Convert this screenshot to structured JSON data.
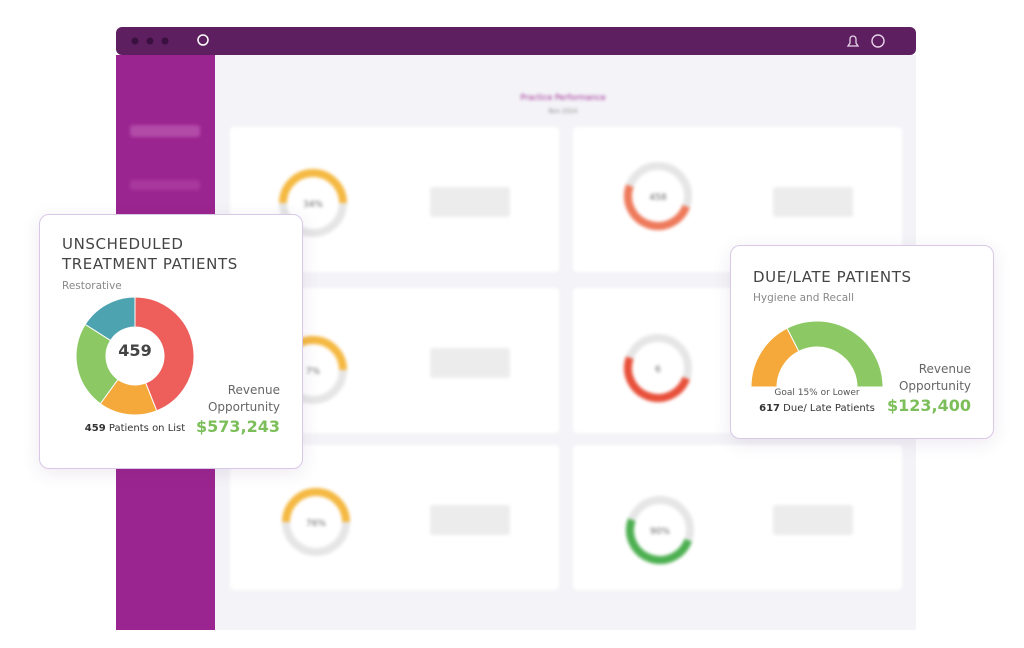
{
  "dashboard": {
    "heading": "Practice Performance",
    "period": "Nov 2024",
    "tiles": [
      {
        "value": "34%"
      },
      {
        "value": "458"
      },
      {
        "value": "7%"
      },
      {
        "value": "6"
      },
      {
        "value": "76%"
      },
      {
        "value": "90%"
      }
    ]
  },
  "card_unscheduled": {
    "title": "UNSCHEDULED TREATMENT PATIENTS",
    "subtitle": "Restorative",
    "center": "459",
    "segments": [
      {
        "value": 44,
        "color": "#ee5f5b"
      },
      {
        "value": 16,
        "color": "#f5a93b"
      },
      {
        "value": 24,
        "color": "#8cc965"
      },
      {
        "value": 16,
        "color": "#4ea3b0"
      }
    ],
    "count": "459",
    "count_text": "Patients on List",
    "revenue_label": "Revenue Opportunity",
    "revenue": "$573,243"
  },
  "card_due": {
    "title": "DUE/LATE PATIENTS",
    "subtitle": "Hygiene and Recall",
    "segments": [
      {
        "value": 35,
        "color": "#f5a93b"
      },
      {
        "value": 65,
        "color": "#8cc965"
      }
    ],
    "goal": "Goal 15% or Lower",
    "count": "617",
    "count_text": "Due/ Late Patients",
    "revenue_label": "Revenue Opportunity",
    "revenue": "$123,400"
  }
}
